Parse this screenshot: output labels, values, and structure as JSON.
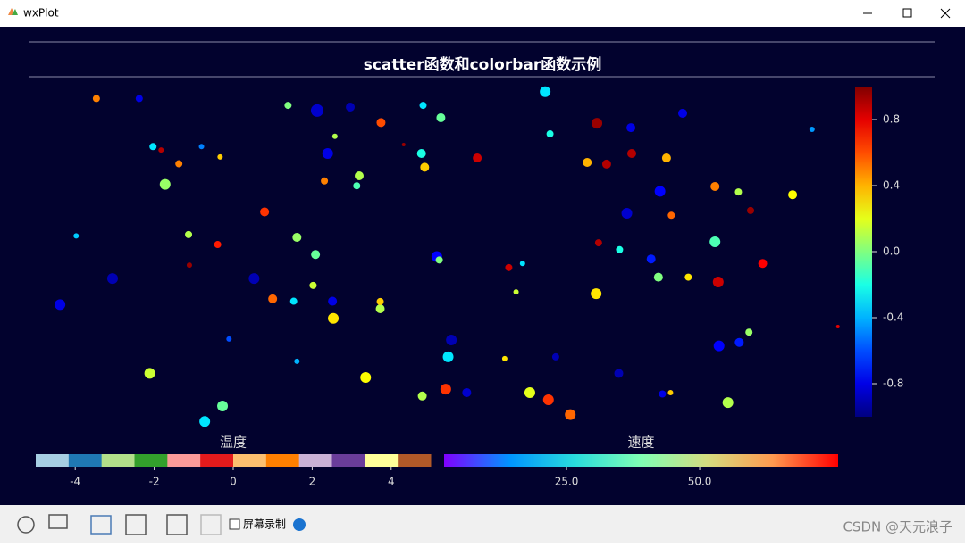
{
  "window": {
    "title": "wxPlot"
  },
  "chart_data": {
    "type": "scatter",
    "title": "scatter函数和colorbar函数示例",
    "colormap": "jet",
    "x": [
      7.5,
      12.8,
      14.5,
      16,
      17.7,
      3,
      5,
      9.5,
      14.1,
      20.9,
      23.1,
      22.5,
      19,
      18.9,
      20.5,
      22.8,
      28.3,
      32.3,
      34.6,
      29.3,
      31.9,
      27,
      36.8,
      36.7,
      34.3,
      32.3,
      40.8,
      23.9,
      34.8,
      38.9,
      42.7,
      36.1,
      35.7,
      40,
      39.7,
      31.2,
      37,
      47.9,
      50.1,
      47.7,
      48.1,
      49.6,
      49.9,
      51.4,
      51,
      50.7,
      47.8,
      42.6,
      42.6,
      54.6,
      58.5,
      60.2,
      63,
      63.6,
      69.4,
      68.2,
      70.6,
      73.7,
      73.6,
      73.1,
      69.6,
      72.2,
      69.3,
      76.1,
      77,
      77.2,
      78,
      78.6,
      80,
      84,
      86.9,
      88.4,
      84,
      84.4,
      89.9,
      80.7,
      84.5,
      87,
      88.2,
      85.6,
      77.5,
      78.5,
      66.1,
      63.4,
      61.1,
      53.3,
      93.6,
      96,
      99.2,
      72.1,
      64.3,
      58,
      59.4,
      15.5,
      45.5
    ],
    "y": [
      96,
      96,
      82,
      71,
      77,
      36,
      56,
      43.6,
      16,
      2,
      6.5,
      53.5,
      47.5,
      56.4,
      82,
      79,
      63,
      55.6,
      50.6,
      37.7,
      37,
      43.6,
      32,
      37,
      41.6,
      19.5,
      14.8,
      26,
      92.5,
      93.5,
      89,
      80,
      72,
      73.5,
      70.6,
      94,
      85,
      94,
      90.4,
      80,
      76,
      50,
      49,
      25.7,
      20.8,
      11.4,
      9.4,
      34.8,
      36.9,
      78.7,
      46.8,
      48,
      98,
      85.7,
      88.8,
      77.4,
      76.9,
      80,
      87.5,
      62.6,
      54,
      52,
      39.2,
      49.3,
      44,
      69,
      78.7,
      62,
      91.7,
      70.4,
      68.8,
      63.4,
      54.3,
      42.6,
      48,
      44,
      24,
      25,
      28,
      7.5,
      10,
      10.4,
      4,
      8.3,
      10.4,
      10.4,
      68,
      87,
      29.6,
      16,
      20.8,
      20.3,
      39.7,
      81,
      82.6
    ],
    "c": [
      0.5,
      -0.8,
      -0.3,
      0.05,
      0.5,
      -0.8,
      -0.35,
      -0.9,
      0.15,
      -0.3,
      -0.05,
      0.7,
      0.95,
      0.1,
      -0.5,
      0.35,
      0.65,
      0.05,
      -0.05,
      0.55,
      -0.3,
      -0.9,
      0.3,
      -0.8,
      0.15,
      -0.4,
      0.25,
      -0.6,
      -0.85,
      -0.9,
      0.6,
      -0.8,
      0.5,
      0.1,
      -0.1,
      0,
      0.1,
      -0.3,
      -0.05,
      -0.2,
      0.35,
      -0.75,
      0,
      -0.9,
      -0.3,
      0.65,
      0.1,
      0.1,
      0.35,
      0.85,
      0.85,
      -0.3,
      -0.3,
      -0.2,
      0.95,
      0.4,
      0.9,
      0.9,
      -0.8,
      -0.85,
      0.9,
      -0.2,
      0.3,
      -0.7,
      0,
      -0.75,
      0.4,
      0.55,
      -0.8,
      0.5,
      0.1,
      0.95,
      -0.1,
      0.85,
      0.75,
      0.3,
      -0.75,
      -0.7,
      0.05,
      0.1,
      -0.8,
      0.35,
      0.55,
      0.65,
      0.2,
      -0.85,
      0.25,
      -0.45,
      0.8,
      -0.9,
      -0.9,
      0.3,
      0.15,
      0.9,
      0.95
    ],
    "sizes": [
      4,
      4,
      4,
      6,
      4,
      6,
      3,
      6,
      6,
      6,
      6,
      4,
      3,
      4,
      3,
      3,
      5,
      5,
      5,
      5,
      4,
      6,
      6,
      5,
      4,
      3,
      6,
      3,
      7,
      5,
      5,
      6,
      4,
      5,
      4,
      4,
      3,
      4,
      5,
      5,
      5,
      6,
      4,
      6,
      6,
      6,
      5,
      5,
      4,
      5,
      4,
      3,
      6,
      4,
      6,
      5,
      5,
      5,
      5,
      6,
      4,
      4,
      6,
      5,
      5,
      6,
      5,
      4,
      5,
      5,
      4,
      4,
      6,
      6,
      5,
      4,
      6,
      5,
      4,
      6,
      4,
      3,
      6,
      6,
      6,
      5,
      5,
      3,
      2,
      5,
      4,
      3,
      3,
      3,
      2
    ],
    "xlim": [
      0,
      100
    ],
    "ylim": [
      0,
      100
    ],
    "clim": [
      -1,
      1
    ],
    "cticks": [
      -0.8,
      -0.4,
      {
        "value": 0,
        "label": "0.0"
      },
      0.4,
      0.8
    ]
  },
  "colorbars": [
    {
      "label": "温度",
      "lim": [
        -5,
        5
      ],
      "ticks": [
        -4,
        -2,
        0,
        2,
        4
      ],
      "colors": [
        "#a6cee3",
        "#1f78b4",
        "#b2df8a",
        "#33a02c",
        "#fb9a99",
        "#e31a1c",
        "#fdbf6f",
        "#ff7f00",
        "#cab2d6",
        "#6a3d9a",
        "#ffff99",
        "#b15928"
      ]
    },
    {
      "label": "速度",
      "lim": [
        2,
        76
      ],
      "ticks": [
        {
          "value": 25,
          "label": "25.0"
        },
        {
          "value": 50,
          "label": "50.0"
        }
      ],
      "colors": [
        "#8000ff",
        "#0094ff",
        "#2adcdc",
        "#80ffb4",
        "#d4dd80",
        "#ff9a50",
        "#ff0000"
      ]
    }
  ],
  "toolbar": {
    "checkbox_label": "屏幕录制"
  },
  "watermark": "CSDN @天元浪子"
}
